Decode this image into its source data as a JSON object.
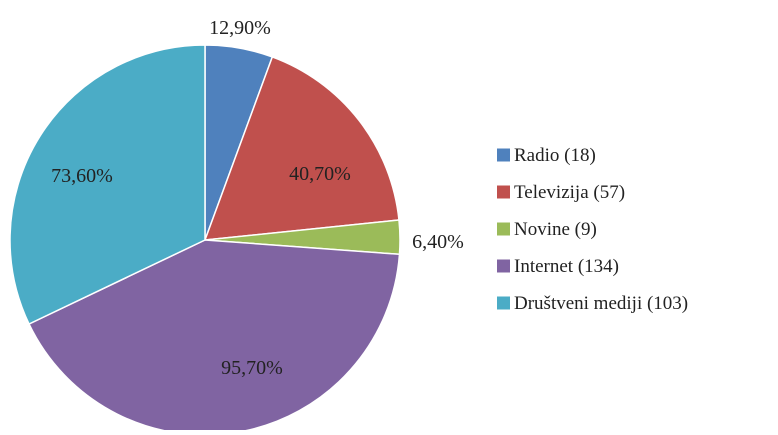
{
  "chart_data": {
    "type": "pie",
    "title": "",
    "legend_position": "right",
    "start_angle_deg": 0,
    "direction": "clockwise",
    "slices": [
      {
        "name": "Radio",
        "count": 18,
        "legend": "Radio (18)",
        "label": "12,90%",
        "color": "#4F81BD"
      },
      {
        "name": "Televizija",
        "count": 57,
        "legend": "Televizija (57)",
        "label": "40,70%",
        "color": "#C0504D"
      },
      {
        "name": "Novine",
        "count": 9,
        "legend": "Novine (9)",
        "label": "6,40%",
        "color": "#9BBB59"
      },
      {
        "name": "Internet",
        "count": 134,
        "legend": "Internet (134)",
        "label": "95,70%",
        "color": "#8064A2"
      },
      {
        "name": "Društveni mediji",
        "count": 103,
        "legend": "Društveni mediji (103)",
        "label": "73,60%",
        "color": "#4BACC6"
      }
    ]
  }
}
